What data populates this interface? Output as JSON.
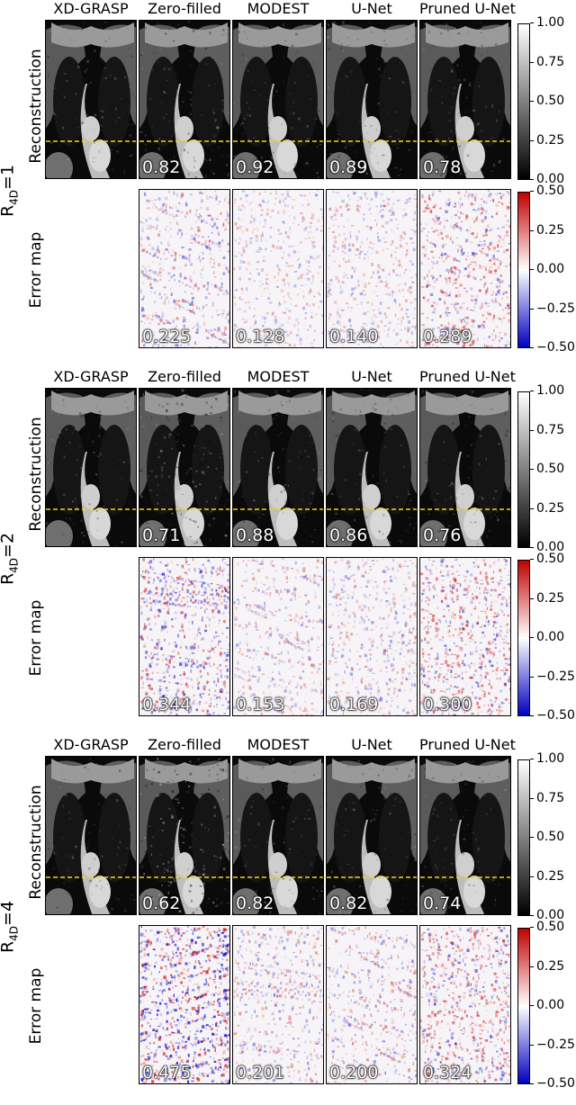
{
  "columns": [
    "XD-GRASP",
    "Zero-filled",
    "MODEST",
    "U-Net",
    "Pruned U-Net"
  ],
  "row_labels": {
    "reconstruction": "Reconstruction",
    "error_map": "Error map"
  },
  "recon_colorbar_ticks": [
    "1.00",
    "0.75",
    "0.50",
    "0.25",
    "0.00"
  ],
  "error_colorbar_ticks": [
    "0.50",
    "0.25",
    "0.00",
    "−0.25",
    "−0.50"
  ],
  "colors": {
    "dashed_line": "#e8e000",
    "error_positive": "#d00000",
    "error_negative": "#0000d0"
  },
  "blocks": [
    {
      "r_label_prefix": "R",
      "r_label_sub": "4D",
      "r_label_suffix": "=1",
      "recon_metrics": [
        "0.82",
        "0.92",
        "0.89",
        "0.78"
      ],
      "error_metrics": [
        "0.225",
        "0.128",
        "0.140",
        "0.289"
      ]
    },
    {
      "r_label_prefix": "R",
      "r_label_sub": "4D",
      "r_label_suffix": "=2",
      "recon_metrics": [
        "0.71",
        "0.88",
        "0.86",
        "0.76"
      ],
      "error_metrics": [
        "0.344",
        "0.153",
        "0.169",
        "0.300"
      ]
    },
    {
      "r_label_prefix": "R",
      "r_label_sub": "4D",
      "r_label_suffix": "=4",
      "recon_metrics": [
        "0.62",
        "0.82",
        "0.82",
        "0.74"
      ],
      "error_metrics": [
        "0.475",
        "0.201",
        "0.200",
        "0.324"
      ]
    }
  ]
}
